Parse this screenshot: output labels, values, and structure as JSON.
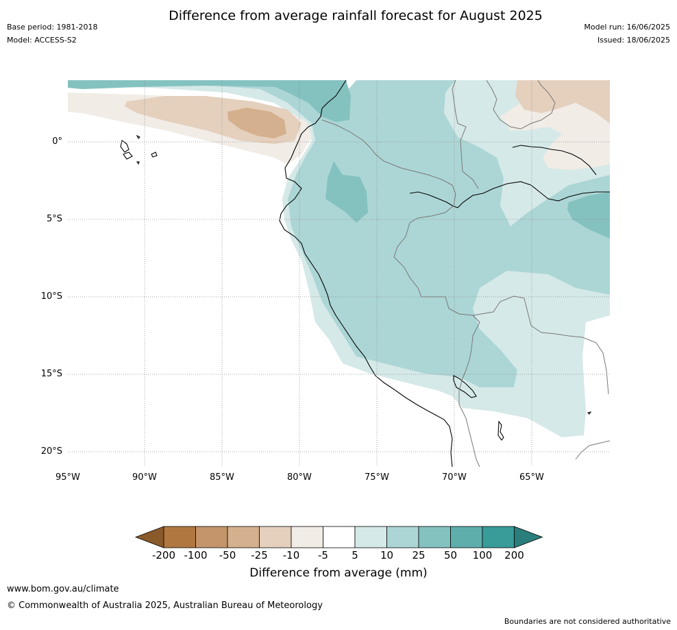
{
  "header": {
    "title": "Difference from average rainfall forecast for August 2025",
    "base_period": "Base period: 1981-2018",
    "model": "Model: ACCESS-S2",
    "model_run": "Model run: 16/06/2025",
    "issued": "Issued: 18/06/2025"
  },
  "map": {
    "lat_labels": [
      "0°",
      "5°S",
      "10°S",
      "15°S",
      "20°S"
    ],
    "lon_labels": [
      "95°W",
      "90°W",
      "85°W",
      "80°W",
      "75°W",
      "70°W",
      "65°W"
    ],
    "lat_range": [
      "5°N",
      "21°S"
    ],
    "lon_range": [
      "95°W",
      "60°W"
    ]
  },
  "colorbar": {
    "label": "Difference from average (mm)",
    "ticks": [
      "-200",
      "-100",
      "-50",
      "-25",
      "-10",
      "-5",
      "5",
      "10",
      "25",
      "50",
      "100",
      "200"
    ],
    "colors": [
      "#8a5a2b",
      "#b07840",
      "#c4956a",
      "#d5b08e",
      "#e4d0bd",
      "#f1ece6",
      "#ffffff",
      "#d5e9e8",
      "#acd6d5",
      "#84c2c0",
      "#5eaeac",
      "#389c99",
      "#2a7f7c"
    ]
  },
  "footer": {
    "url": "www.bom.gov.au/climate",
    "copyright": "© Commonwealth of Australia 2025, Australian Bureau of Meteorology",
    "disclaimer": "Boundaries are not considered authoritative"
  }
}
